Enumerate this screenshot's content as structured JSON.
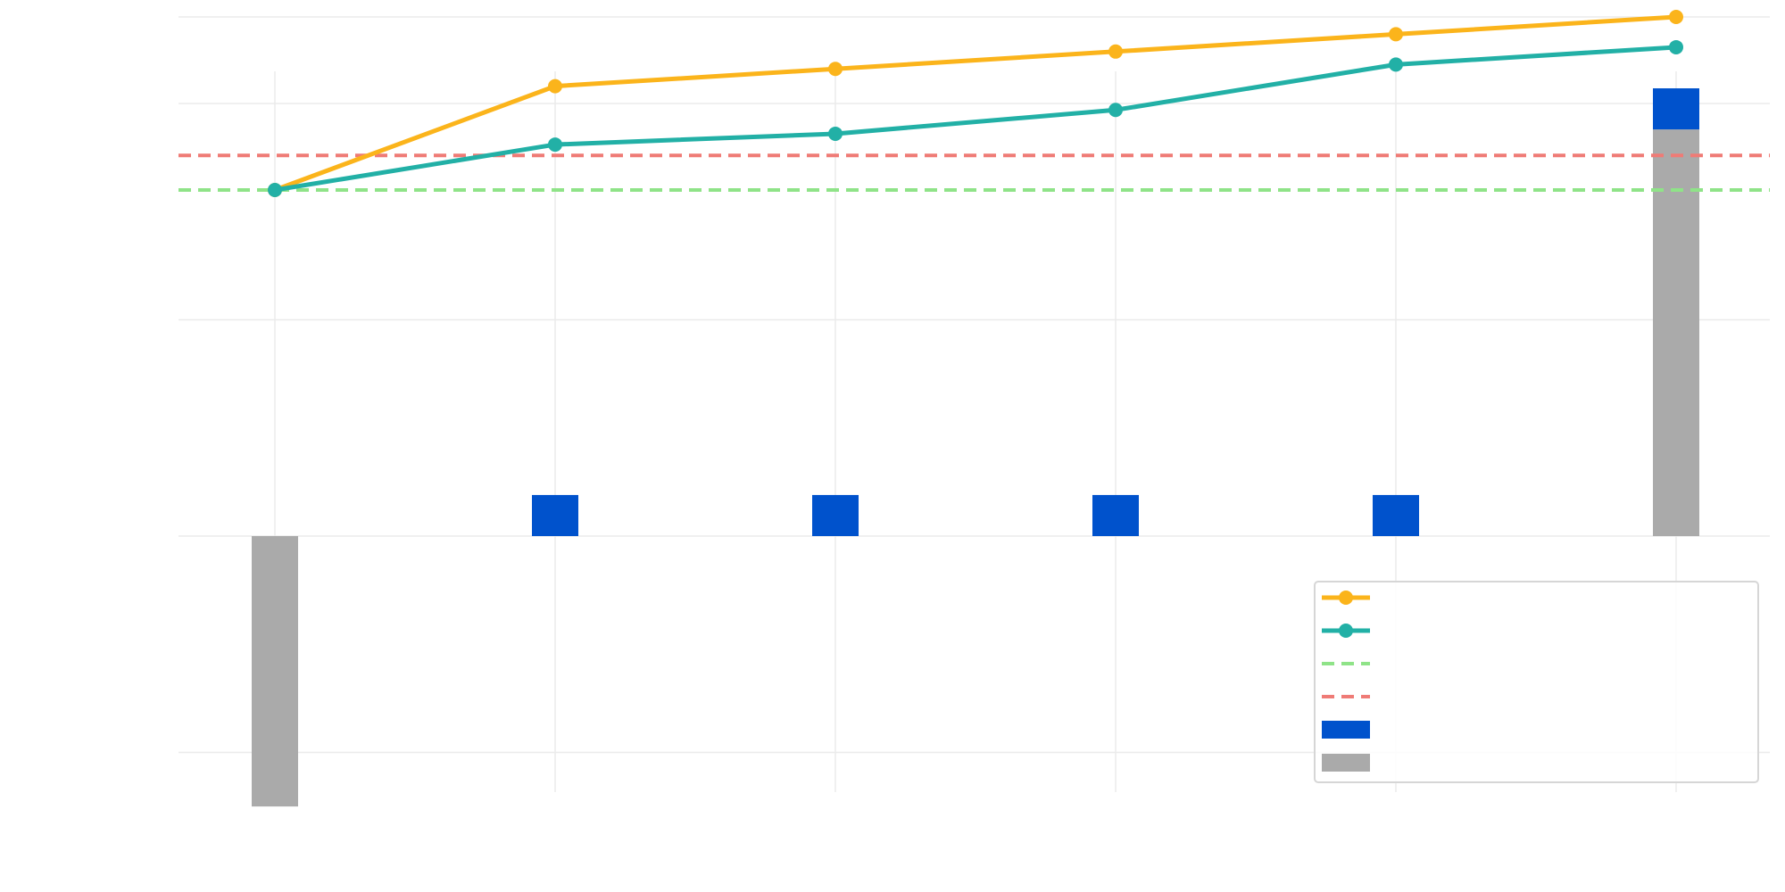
{
  "chart_data": {
    "type": "line",
    "title": "",
    "xlabel": "",
    "ylabel": "",
    "categories": [
      "",
      "",
      "",
      "",
      "",
      ""
    ],
    "grid": true,
    "legend_position": "bottom-right",
    "ylim": [
      -0.9,
      1.5
    ],
    "series": [
      {
        "kind": "line",
        "color": "#FBB41B",
        "values": [
          0.8,
          1.04,
          1.08,
          1.12,
          1.16,
          1.2
        ]
      },
      {
        "kind": "line",
        "color": "#22B0A6",
        "values": [
          0.8,
          0.905,
          0.93,
          0.985,
          1.09,
          1.13
        ]
      },
      {
        "kind": "hline",
        "color": "#8FE388",
        "value": 0.8
      },
      {
        "kind": "hline",
        "color": "#EF7B76",
        "value": 0.88
      },
      {
        "kind": "bar",
        "color": "#0052CC",
        "values": [
          0,
          0.095,
          0.095,
          0.095,
          0.095,
          0.095
        ],
        "bases": [
          0,
          0,
          0,
          0,
          0,
          0.94
        ]
      },
      {
        "kind": "bar",
        "color": "#AAAAAA",
        "values": [
          -0.625,
          0,
          0,
          0,
          0,
          0.94
        ],
        "bases": [
          0,
          0,
          0,
          0,
          0,
          0
        ]
      }
    ]
  }
}
